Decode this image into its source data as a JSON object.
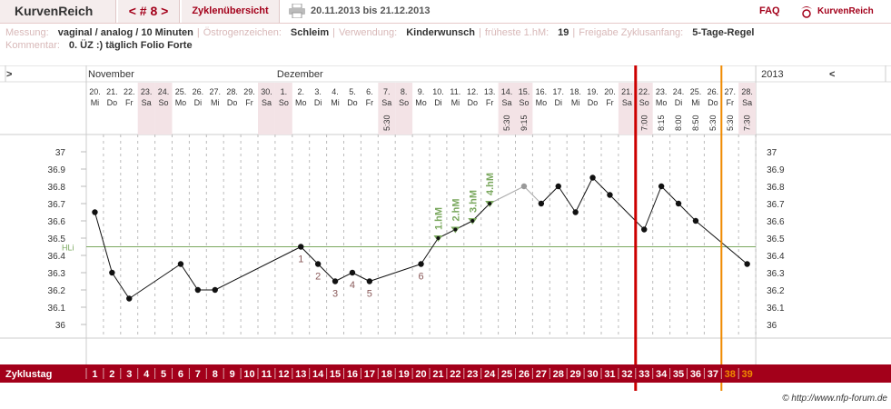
{
  "header": {
    "brand": "KurvenReich",
    "cycle_nav": "< # 8 >",
    "overview": "Zyklenübersicht",
    "date_range": "20.11.2013 bis 21.12.2013",
    "faq": "FAQ",
    "logo": "KurvenReich"
  },
  "info": {
    "messung_label": "Messung:",
    "messung_value": "vaginal / analog / 10 Minuten",
    "oestrogen_label": "Östrogenzeichen:",
    "oestrogen_value": "Schleim",
    "verwendung_label": "Verwendung:",
    "verwendung_value": "Kinderwunsch",
    "hm_label": "früheste 1.hM:",
    "hm_value": "19",
    "freigabe_label": "Freigabe Zyklusanfang:",
    "freigabe_value": "5-Tage-Regel",
    "kommentar_label": "Kommentar:",
    "kommentar_value": "0. ÜZ :) täglich Folio Forte"
  },
  "colors": {
    "accent": "#a3001a",
    "hl_line": "#7aa85e",
    "orange": "#f08a00",
    "point": "#111",
    "highlight_point": "#7aa85e",
    "faded_point": "#999"
  },
  "chart_data": {
    "type": "line",
    "x_start_label": ">",
    "x_end_label": "<",
    "year_label": "2013",
    "months": [
      {
        "label": "November",
        "day_index": 0
      },
      {
        "label": "Dezember",
        "day_index": 11
      }
    ],
    "dates": [
      "20.",
      "21.",
      "22.",
      "23.",
      "24.",
      "25.",
      "26.",
      "27.",
      "28.",
      "29.",
      "30.",
      "1.",
      "2.",
      "3.",
      "4.",
      "5.",
      "6.",
      "7.",
      "8.",
      "9.",
      "10.",
      "11.",
      "12.",
      "13.",
      "14.",
      "15.",
      "16.",
      "17.",
      "18.",
      "19.",
      "20.",
      "21.",
      "22.",
      "23.",
      "24.",
      "25.",
      "26.",
      "27.",
      "28."
    ],
    "weekdays": [
      "Mi",
      "Do",
      "Fr",
      "Sa",
      "So",
      "Mo",
      "Di",
      "Mi",
      "Do",
      "Fr",
      "Sa",
      "So",
      "Mo",
      "Di",
      "Mi",
      "Do",
      "Fr",
      "Sa",
      "So",
      "Mo",
      "Di",
      "Mi",
      "Do",
      "Fr",
      "Sa",
      "So",
      "Mo",
      "Di",
      "Mi",
      "Do",
      "Fr",
      "Sa",
      "So",
      "Mo",
      "Di",
      "Mi",
      "Do",
      "Fr",
      "Sa"
    ],
    "weekend_days": [
      3,
      4,
      10,
      11,
      17,
      18,
      24,
      25,
      31,
      32,
      38
    ],
    "times": {
      "17": "5:30",
      "24": "5:30",
      "25": "9:15",
      "32": "7:00",
      "33": "8:15",
      "34": "8:00",
      "35": "8:50",
      "36": "5:30",
      "37": "5:30",
      "38": "7:30"
    },
    "cycle_days": [
      "1",
      "2",
      "3",
      "4",
      "5",
      "6",
      "7",
      "8",
      "9",
      "10",
      "11",
      "12",
      "13",
      "14",
      "15",
      "16",
      "17",
      "18",
      "19",
      "20",
      "21",
      "22",
      "23",
      "24",
      "25",
      "26",
      "27",
      "28",
      "29",
      "30",
      "31",
      "32",
      "33",
      "34",
      "35",
      "36",
      "37",
      "38",
      "39"
    ],
    "cycle_label": "Zyklustag",
    "hl_label": "HLi",
    "hl_value": 36.45,
    "y_ticks": [
      "37",
      "36.9",
      "36.8",
      "36.7",
      "36.6",
      "36.5",
      "36.4",
      "36.3",
      "36.2",
      "36.1",
      "36"
    ],
    "ylim": [
      36.0,
      37.0
    ],
    "temps": [
      36.65,
      36.3,
      36.15,
      null,
      null,
      36.35,
      36.2,
      36.2,
      null,
      null,
      null,
      null,
      36.45,
      36.35,
      36.25,
      36.3,
      36.25,
      null,
      null,
      36.35,
      36.5,
      36.55,
      36.6,
      36.7,
      null,
      36.8,
      36.7,
      36.8,
      36.65,
      36.85,
      36.75,
      null,
      36.55,
      36.8,
      36.7,
      36.6,
      null,
      null,
      36.35
    ],
    "faded_days": [
      25
    ],
    "low_labels": [
      {
        "day": 12,
        "label": "1"
      },
      {
        "day": 13,
        "label": "2"
      },
      {
        "day": 14,
        "label": "3"
      },
      {
        "day": 15,
        "label": "4"
      },
      {
        "day": 16,
        "label": "5"
      },
      {
        "day": 19,
        "label": "6"
      }
    ],
    "high_labels": [
      {
        "day": 20,
        "label": "1.hM"
      },
      {
        "day": 21,
        "label": "2.hM"
      },
      {
        "day": 22,
        "label": "3.hM"
      },
      {
        "day": 23,
        "label": "4.hM"
      }
    ],
    "red_line_after_day": 31,
    "orange_line_after_day": 36,
    "orange_cycle_days": [
      37,
      38
    ]
  },
  "copyright": "© http://www.nfp-forum.de"
}
